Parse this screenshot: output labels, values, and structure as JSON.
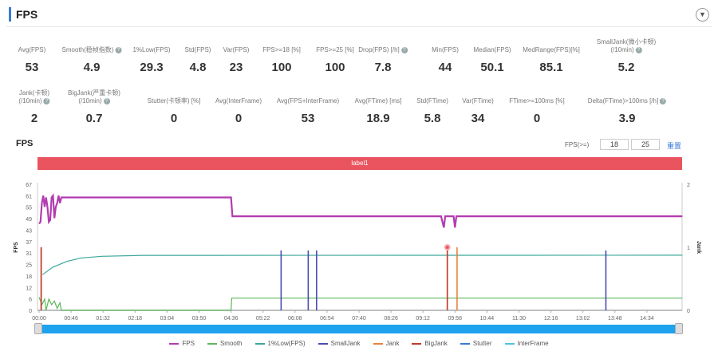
{
  "header": {
    "title": "FPS",
    "dropdown_icon": "chevron-down-icon"
  },
  "metrics_row1": [
    {
      "label": "Avg(FPS)",
      "value": "53",
      "help": false
    },
    {
      "label": "Smooth(稳帧指数)",
      "value": "4.9",
      "help": true
    },
    {
      "label": "1%Low(FPS)",
      "value": "29.3",
      "help": false
    },
    {
      "label": "Std(FPS)",
      "value": "4.8",
      "help": false
    },
    {
      "label": "Var(FPS)",
      "value": "23",
      "help": false
    },
    {
      "label": "FPS>=18 [%]",
      "value": "100",
      "help": false
    },
    {
      "label": "FPS>=25 [%]",
      "value": "100",
      "help": false
    },
    {
      "label": "Drop(FPS) [/h]",
      "value": "7.8",
      "help": true
    },
    {
      "label": "Min(FPS)",
      "value": "44",
      "help": false
    },
    {
      "label": "Median(FPS)",
      "value": "50.1",
      "help": false
    },
    {
      "label": "MedRange(FPS)[%]",
      "value": "85.1",
      "help": false
    },
    {
      "label": "SmallJank(微小卡顿)",
      "label2": "(/10min)",
      "value": "5.2",
      "help": true
    }
  ],
  "metrics_row2": [
    {
      "label": "Jank(卡顿)",
      "label2": "(/10min)",
      "value": "2",
      "help": true
    },
    {
      "label": "BigJank(严重卡顿)",
      "label2": "(/10min)",
      "value": "0.7",
      "help": true
    },
    {
      "label": "Stutter(卡顿率) [%]",
      "value": "0",
      "help": false
    },
    {
      "label": "Avg(InterFrame)",
      "value": "0",
      "help": false
    },
    {
      "label": "Avg(FPS+InterFrame)",
      "value": "53",
      "help": false
    },
    {
      "label": "Avg(FTime) [ms]",
      "value": "18.9",
      "help": false
    },
    {
      "label": "Std(FTime)",
      "value": "5.8",
      "help": false
    },
    {
      "label": "Var(FTime)",
      "value": "34",
      "help": false
    },
    {
      "label": "FTime>=100ms [%]",
      "value": "0",
      "help": false
    },
    {
      "label": "Delta(FTime)>100ms [/h]",
      "value": "3.9",
      "help": true
    }
  ],
  "chart_panel": {
    "title": "FPS",
    "threshold_label": "FPS(>=)",
    "threshold1": "18",
    "threshold2": "25",
    "reset_label": "重置",
    "label_bar": "label1"
  },
  "chart_data": {
    "type": "line",
    "y_left_label": "FPS",
    "y_right_label": "Jank",
    "y_left_ticks": [
      "0",
      "6",
      "12",
      "18",
      "25",
      "31",
      "37",
      "43",
      "49",
      "55",
      "61",
      "67"
    ],
    "y_left_range": [
      0,
      67
    ],
    "y_right_ticks": [
      "0",
      "1",
      "2"
    ],
    "y_right_range": [
      0,
      2
    ],
    "x_ticks": [
      "00:00",
      "00:46",
      "01:32",
      "02:18",
      "03:04",
      "03:50",
      "04:36",
      "05:22",
      "06:08",
      "06:54",
      "07:40",
      "08:26",
      "09:12",
      "09:58",
      "10:44",
      "11:30",
      "12:16",
      "13:02",
      "13:48",
      "14:34"
    ],
    "x_range": [
      "00:00",
      "15:25"
    ],
    "series": [
      {
        "name": "FPS",
        "color": "#b23cb0",
        "axis": "left",
        "points": [
          [
            "00:00",
            46
          ],
          [
            "00:02",
            47
          ],
          [
            "00:04",
            57
          ],
          [
            "00:06",
            61
          ],
          [
            "00:08",
            55
          ],
          [
            "00:10",
            60
          ],
          [
            "00:12",
            55
          ],
          [
            "00:14",
            47
          ],
          [
            "00:16",
            48
          ],
          [
            "00:18",
            60
          ],
          [
            "00:20",
            61
          ],
          [
            "00:22",
            49
          ],
          [
            "00:24",
            55
          ],
          [
            "00:26",
            57
          ],
          [
            "00:28",
            61
          ],
          [
            "00:30",
            57
          ],
          [
            "00:32",
            60
          ],
          [
            "00:34",
            60
          ],
          [
            "04:36",
            60
          ],
          [
            "04:38",
            50
          ],
          [
            "09:38",
            50
          ],
          [
            "09:42",
            44
          ],
          [
            "09:44",
            50
          ],
          [
            "09:56",
            50
          ],
          [
            "09:58",
            44
          ],
          [
            "10:00",
            50
          ],
          [
            "15:25",
            50
          ]
        ]
      },
      {
        "name": "Smooth",
        "color": "#5cb85c",
        "axis": "left",
        "points": [
          [
            "00:00",
            7
          ],
          [
            "00:04",
            3
          ],
          [
            "00:08",
            6
          ],
          [
            "00:10",
            0
          ],
          [
            "00:14",
            6
          ],
          [
            "00:18",
            3
          ],
          [
            "00:22",
            5
          ],
          [
            "00:26",
            1
          ],
          [
            "00:30",
            4
          ],
          [
            "00:32",
            0
          ],
          [
            "04:36",
            0
          ],
          [
            "04:37",
            6.5
          ],
          [
            "15:25",
            6.5
          ]
        ]
      },
      {
        "name": "1%Low(FPS)",
        "color": "#3aa79a",
        "axis": "left",
        "points": [
          [
            "00:05",
            19
          ],
          [
            "00:20",
            23
          ],
          [
            "00:40",
            26
          ],
          [
            "01:00",
            27.8
          ],
          [
            "01:30",
            28.7
          ],
          [
            "02:30",
            29.2
          ],
          [
            "15:25",
            29.3
          ]
        ]
      },
      {
        "name": "SmallJank",
        "color": "#4b4bb8",
        "axis": "right",
        "events": [
          "05:48",
          "06:27",
          "06:39",
          "13:35"
        ]
      },
      {
        "name": "Jank",
        "color": "#e8833a",
        "axis": "right",
        "events": [
          "00:03",
          "09:47",
          "10:01"
        ]
      },
      {
        "name": "BigJank",
        "color": "#c0392b",
        "axis": "right",
        "events": [
          "00:03",
          "09:47"
        ]
      },
      {
        "name": "Stutter",
        "color": "#3a7bd5",
        "axis": "left"
      },
      {
        "name": "InterFrame",
        "color": "#4fc3e0",
        "axis": "left"
      }
    ]
  }
}
